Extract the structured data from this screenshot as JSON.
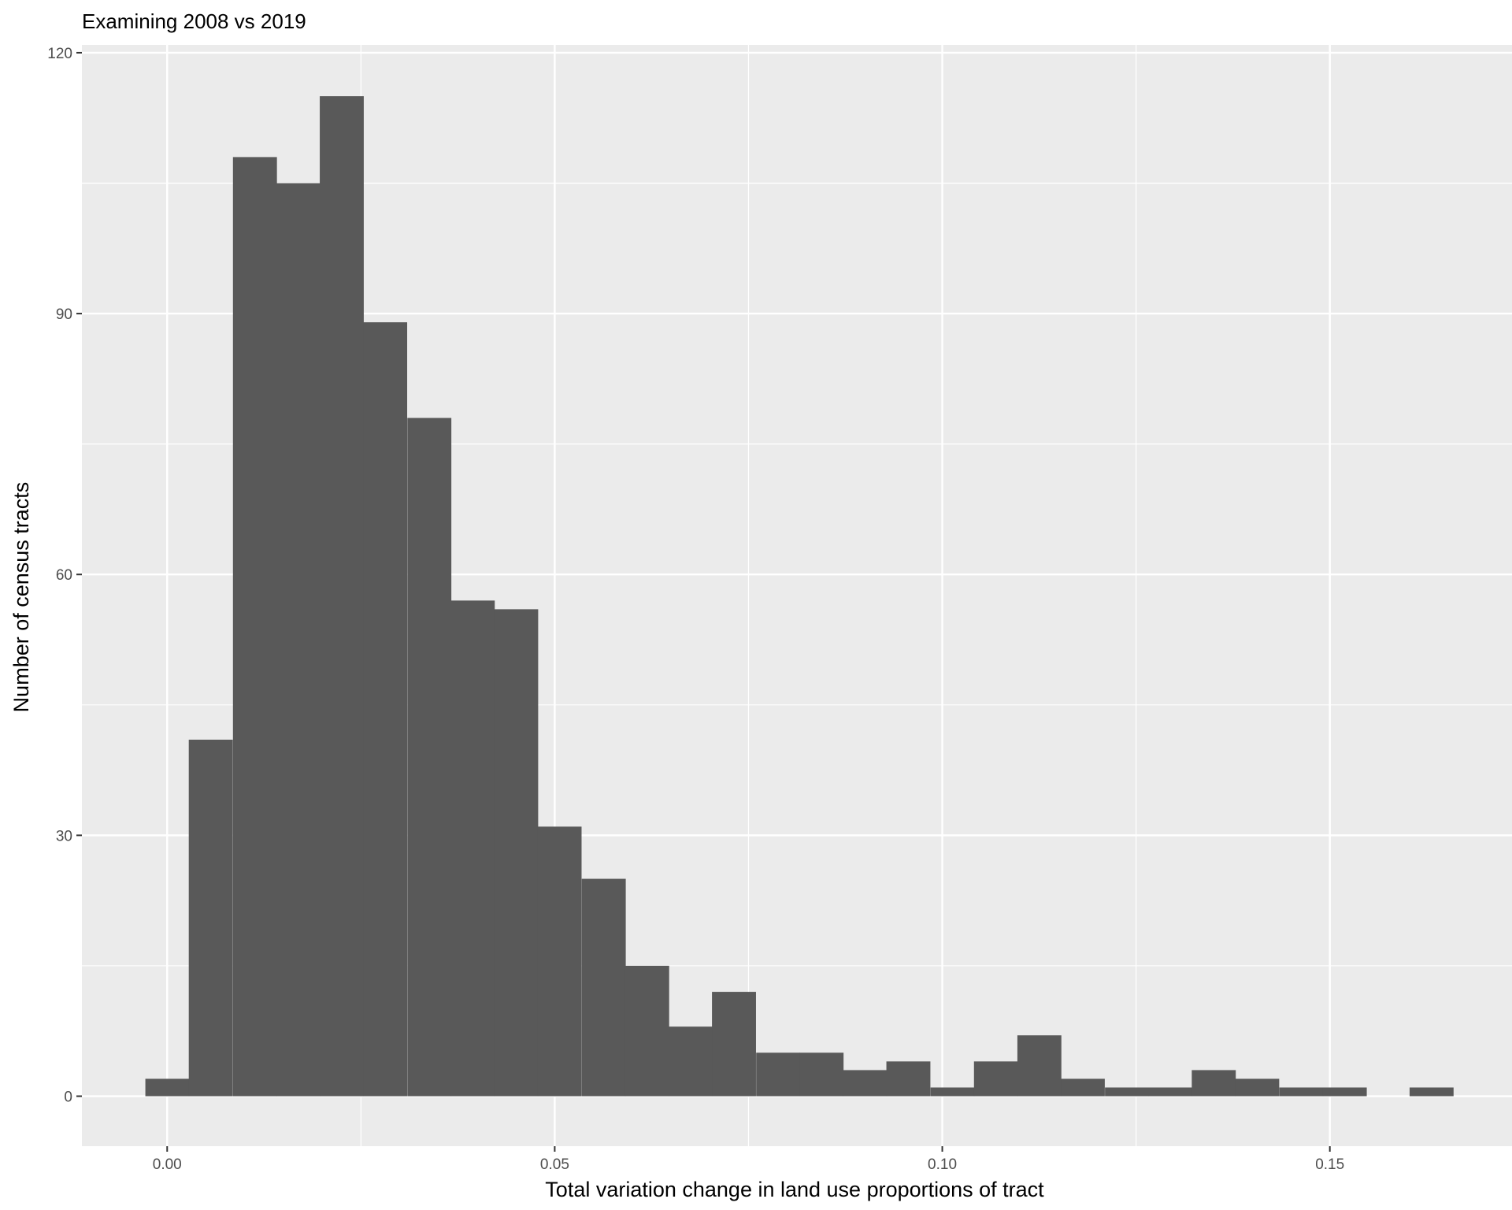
{
  "chart_data": {
    "type": "bar",
    "title": "Examining 2008 vs 2019",
    "xlabel": "Total variation change in land use proportions of tract",
    "ylabel": "Number of census tracts",
    "xlim": [
      -0.011,
      0.1735
    ],
    "ylim": [
      -5.75,
      120.9
    ],
    "x_ticks": [
      0.0,
      0.05,
      0.1,
      0.15
    ],
    "x_tick_labels": [
      "0.00",
      "0.05",
      "0.10",
      "0.15"
    ],
    "x_minor_ticks": [
      0.025,
      0.075,
      0.125
    ],
    "y_ticks": [
      0,
      30,
      60,
      90,
      120
    ],
    "y_tick_labels": [
      "0",
      "30",
      "60",
      "90",
      "120"
    ],
    "y_minor_ticks": [
      15,
      45,
      75,
      105
    ],
    "bin_width": 0.005625,
    "bin_centers": [
      0.0,
      0.0056,
      0.0113,
      0.0169,
      0.0225,
      0.0281,
      0.0338,
      0.0394,
      0.045,
      0.0506,
      0.0563,
      0.0619,
      0.0675,
      0.0731,
      0.0788,
      0.0844,
      0.09,
      0.0956,
      0.1013,
      0.1069,
      0.1125,
      0.1181,
      0.1238,
      0.1294,
      0.135,
      0.1406,
      0.1463,
      0.1519,
      0.1575,
      0.1631
    ],
    "counts": [
      2,
      41,
      108,
      105,
      115,
      89,
      78,
      57,
      56,
      31,
      25,
      15,
      8,
      12,
      5,
      5,
      3,
      4,
      1,
      4,
      7,
      2,
      1,
      1,
      3,
      2,
      1,
      1,
      0,
      1
    ],
    "grid": true,
    "legend": "none",
    "colors": {
      "bar_fill": "#595959",
      "panel_background": "#ebebeb",
      "grid_line": "#ffffff",
      "tick_text": "#4d4d4d",
      "tick_mark": "#333333"
    }
  }
}
